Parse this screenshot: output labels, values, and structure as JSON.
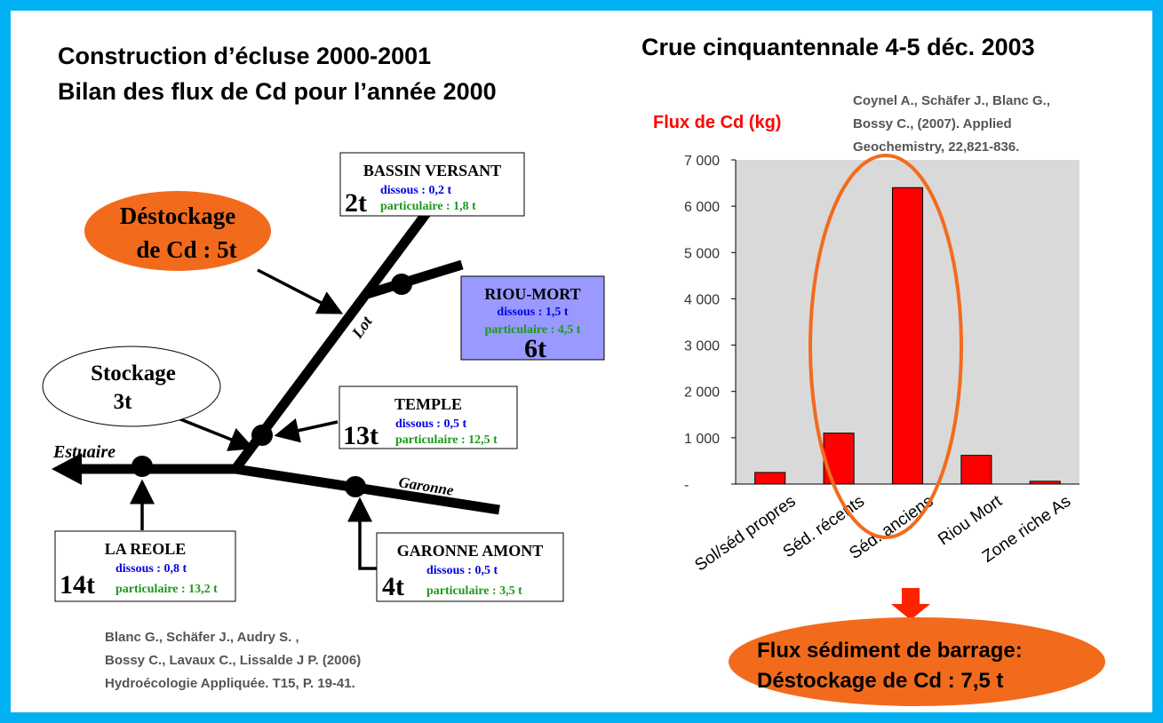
{
  "left_title": [
    "Construction d’écluse 2000-2001",
    "Bilan des flux de Cd pour l’année 2000"
  ],
  "diagram": {
    "ovals": [
      {
        "label": [
          "Déstockage",
          "de Cd : 5t"
        ]
      },
      {
        "label": [
          "Stockage",
          "3t"
        ]
      }
    ],
    "rivers": [
      "Lot",
      "Estuaire",
      "Garonne"
    ],
    "nodes": [
      {
        "name": "BASSIN VERSANT",
        "total": "2t",
        "dissous": "dissous : 0,2 t",
        "particulaire": "particulaire : 1,8 t"
      },
      {
        "name": "RIOU-MORT",
        "total": "6t",
        "dissous": "dissous : 1,5 t",
        "particulaire": "particulaire : 4,5 t"
      },
      {
        "name": "TEMPLE",
        "total": "13t",
        "dissous": "dissous : 0,5 t",
        "particulaire": "particulaire : 12,5 t"
      },
      {
        "name": "LA REOLE",
        "total": "14t",
        "dissous": "dissous : 0,8 t",
        "particulaire": "particulaire : 13,2 t"
      },
      {
        "name": "GARONNE AMONT",
        "total": "4t",
        "dissous": "dissous : 0,5 t",
        "particulaire": "particulaire : 3,5 t"
      }
    ]
  },
  "left_citation": [
    "Blanc G., Schäfer J.,  Audry S. ,",
    "Bossy C.,  Lavaux C., Lissalde J P. (2006)",
    "Hydroécologie Appliquée. T15, P. 19-41."
  ],
  "chart_data": {
    "type": "bar",
    "title": "Crue cinquantennale 4-5 déc. 2003",
    "y_label": "Flux de Cd (kg)",
    "citation": [
      "Coynel A., Schäfer J., Blanc G.,",
      "Bossy C., (2007).  Applied",
      "Geochemistry, 22,821-836."
    ],
    "categories": [
      "Sol/séd propres",
      "Séd. récents",
      "Séd. anciens",
      "Riou Mort",
      "Zone riche As"
    ],
    "values": [
      250,
      1100,
      6400,
      620,
      60
    ],
    "color": "#ff0000",
    "ylim": [
      0,
      7000
    ],
    "yticks": [
      {
        "value": 0,
        "label": "-"
      },
      {
        "value": 1000,
        "label": "1 000"
      },
      {
        "value": 2000,
        "label": "2 000"
      },
      {
        "value": 3000,
        "label": "3 000"
      },
      {
        "value": 4000,
        "label": "4 000"
      },
      {
        "value": 5000,
        "label": "5 000"
      },
      {
        "value": 6000,
        "label": "6 000"
      },
      {
        "value": 7000,
        "label": "7 000"
      }
    ],
    "callout": [
      "Flux sédiment de barrage:",
      "Déstockage de Cd : 7,5 t"
    ]
  }
}
